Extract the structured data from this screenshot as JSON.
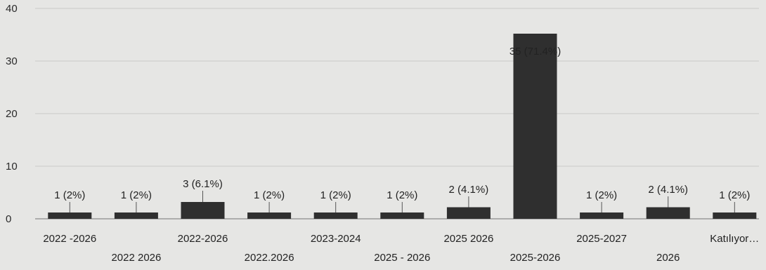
{
  "chart_data": {
    "type": "bar",
    "title": "",
    "xlabel": "",
    "ylabel": "",
    "ylim": [
      0,
      40
    ],
    "yticks": [
      0,
      10,
      20,
      30,
      40
    ],
    "grid": true,
    "categories": [
      "2022 -2026",
      "2022 2026",
      "2022-2026",
      "2022.2026",
      "2023-2024",
      "2025 - 2026",
      "2025 2026",
      "2025-2026",
      "2025-2027",
      "2026",
      "Katılıyor…"
    ],
    "values": [
      1,
      1,
      3,
      1,
      1,
      1,
      2,
      35,
      1,
      2,
      1
    ],
    "data_labels": [
      "1 (2%)",
      "1 (2%)",
      "3 (6.1%)",
      "1 (2%)",
      "1 (2%)",
      "1 (2%)",
      "2 (4.1%)",
      "35 (71.4%)",
      "1 (2%)",
      "2 (4.1%)",
      "1 (2%)"
    ],
    "colors": {
      "bar": "#2f2f2f",
      "grid": "#c9c9c7",
      "axis": "#8a8a8a",
      "text": "#222222"
    }
  }
}
